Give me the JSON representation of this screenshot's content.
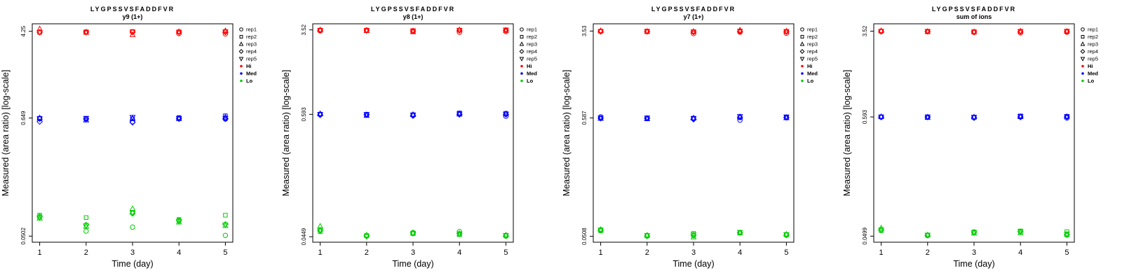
{
  "page": {
    "background": "#FFFFFF"
  },
  "legend": {
    "rep_items": [
      {
        "label": "rep1",
        "symbol": "circle"
      },
      {
        "label": "rep2",
        "symbol": "square"
      },
      {
        "label": "rep3",
        "symbol": "triangle-up"
      },
      {
        "label": "rep4",
        "symbol": "diamond"
      },
      {
        "label": "rep5",
        "symbol": "triangle-down"
      }
    ],
    "level_items": [
      {
        "label": "Hi",
        "color": "#FF0000"
      },
      {
        "label": "Med",
        "color": "#0000FF"
      },
      {
        "label": "Lo",
        "color": "#00CD00"
      }
    ]
  },
  "chart_data": [
    {
      "type": "scatter",
      "title": "LYGPSSVSFADDFVR",
      "subtitle": "y9 (1+)",
      "xlabel": "Time (day)",
      "ylabel": "Measured (area ratio) [log-scale]",
      "x_ticks": [
        1,
        2,
        3,
        4,
        5
      ],
      "log_scale": true,
      "ylim": [
        0.044,
        5.0
      ],
      "y_ticks": [
        {
          "value": 4.25,
          "label": "4.25"
        },
        {
          "value": 0.649,
          "label": "0.649"
        },
        {
          "value": 0.0502,
          "label": "0.0502"
        }
      ],
      "series": [
        {
          "name": "Hi",
          "color": "#FF0000",
          "days": [
            [
              4.18,
              4.15,
              4.48,
              4.17,
              4.16
            ],
            [
              4.17,
              4.2,
              4.15,
              4.18,
              4.16
            ],
            [
              4.2,
              4.22,
              3.95,
              4.18,
              4.19
            ],
            [
              4.05,
              4.2,
              4.22,
              4.18,
              4.17
            ],
            [
              4.02,
              4.22,
              4.3,
              4.18,
              4.2
            ]
          ]
        },
        {
          "name": "Med",
          "color": "#0000FF",
          "days": [
            [
              0.638,
              0.645,
              0.65,
              0.6,
              0.64
            ],
            [
              0.635,
              0.64,
              0.62,
              0.638,
              0.645
            ],
            [
              0.6,
              0.638,
              0.645,
              0.59,
              0.66
            ],
            [
              0.648,
              0.655,
              0.64,
              0.638,
              0.642
            ],
            [
              0.635,
              0.68,
              0.66,
              0.64,
              0.645
            ]
          ]
        },
        {
          "name": "Lo",
          "color": "#00CD00",
          "days": [
            [
              0.076,
              0.079,
              0.074,
              0.077,
              0.075
            ],
            [
              0.056,
              0.075,
              0.062,
              0.064,
              0.063
            ],
            [
              0.061,
              0.084,
              0.091,
              0.082,
              0.083
            ],
            [
              0.07,
              0.072,
              0.068,
              0.071,
              0.069
            ],
            [
              0.051,
              0.079,
              0.063,
              0.065,
              0.064
            ]
          ]
        }
      ]
    },
    {
      "type": "scatter",
      "title": "LYGPSSVSFADDFVR",
      "subtitle": "y8 (1+)",
      "xlabel": "Time (day)",
      "ylabel": "Measured (area ratio) [log-scale]",
      "x_ticks": [
        1,
        2,
        3,
        4,
        5
      ],
      "log_scale": true,
      "ylim": [
        0.04,
        4.0
      ],
      "y_ticks": [
        {
          "value": 3.52,
          "label": "3.52"
        },
        {
          "value": 0.593,
          "label": "0.593"
        },
        {
          "value": 0.0449,
          "label": "0.0449"
        }
      ],
      "series": [
        {
          "name": "Hi",
          "color": "#FF0000",
          "days": [
            [
              3.45,
              3.5,
              3.52,
              3.48,
              3.49
            ],
            [
              3.48,
              3.5,
              3.46,
              3.49,
              3.47
            ],
            [
              3.42,
              3.46,
              3.38,
              3.44,
              3.45
            ],
            [
              3.35,
              3.5,
              3.52,
              3.48,
              3.49
            ],
            [
              3.4,
              3.52,
              3.48,
              3.49,
              3.51
            ]
          ]
        },
        {
          "name": "Med",
          "color": "#0000FF",
          "days": [
            [
              0.59,
              0.595,
              0.6,
              0.585,
              0.592
            ],
            [
              0.588,
              0.59,
              0.578,
              0.589,
              0.593
            ],
            [
              0.58,
              0.588,
              0.59,
              0.575,
              0.585
            ],
            [
              0.6,
              0.61,
              0.595,
              0.59,
              0.598
            ],
            [
              0.57,
              0.605,
              0.6,
              0.592,
              0.595
            ]
          ]
        },
        {
          "name": "Lo",
          "color": "#00CD00",
          "days": [
            [
              0.052,
              0.05,
              0.056,
              0.051,
              0.0515
            ],
            [
              0.0455,
              0.046,
              0.0465,
              0.0458,
              0.0452
            ],
            [
              0.049,
              0.048,
              0.0485,
              0.0488,
              0.0482
            ],
            [
              0.05,
              0.047,
              0.0475,
              0.048,
              0.0478
            ],
            [
              0.0455,
              0.046,
              0.0465,
              0.0458,
              0.0462
            ]
          ]
        }
      ]
    },
    {
      "type": "scatter",
      "title": "LYGPSSVSFADDFVR",
      "subtitle": "y7 (1+)",
      "xlabel": "Time (day)",
      "ylabel": "Measured (area ratio) [log-scale]",
      "x_ticks": [
        1,
        2,
        3,
        4,
        5
      ],
      "log_scale": true,
      "ylim": [
        0.045,
        4.1
      ],
      "y_ticks": [
        {
          "value": 3.53,
          "label": "3.53"
        },
        {
          "value": 0.587,
          "label": "0.587"
        },
        {
          "value": 0.0508,
          "label": "0.0508"
        }
      ],
      "series": [
        {
          "name": "Hi",
          "color": "#FF0000",
          "days": [
            [
              3.5,
              3.52,
              3.55,
              3.51,
              3.5
            ],
            [
              3.5,
              3.51,
              3.49,
              3.5,
              3.52
            ],
            [
              3.35,
              3.48,
              3.5,
              3.46,
              3.47
            ],
            [
              3.45,
              3.52,
              3.6,
              3.5,
              3.51
            ],
            [
              3.38,
              3.5,
              3.52,
              3.49,
              3.5
            ]
          ]
        },
        {
          "name": "Med",
          "color": "#0000FF",
          "days": [
            [
              0.6,
              0.585,
              0.58,
              0.582,
              0.586
            ],
            [
              0.58,
              0.585,
              0.575,
              0.583,
              0.587
            ],
            [
              0.578,
              0.583,
              0.585,
              0.57,
              0.58
            ],
            [
              0.56,
              0.59,
              0.6,
              0.595,
              0.605
            ],
            [
              0.59,
              0.595,
              0.588,
              0.592,
              0.6
            ]
          ]
        },
        {
          "name": "Lo",
          "color": "#00CD00",
          "days": [
            [
              0.058,
              0.057,
              0.0585,
              0.0575,
              0.058
            ],
            [
              0.051,
              0.0515,
              0.052,
              0.0512,
              0.0518
            ],
            [
              0.0515,
              0.054,
              0.05,
              0.0522,
              0.0525
            ],
            [
              0.0548,
              0.055,
              0.0545,
              0.0547,
              0.0552
            ],
            [
              0.052,
              0.0525,
              0.053,
              0.0522,
              0.0528
            ]
          ]
        }
      ]
    },
    {
      "type": "scatter",
      "title": "LYGPSSVSFADDFVR",
      "subtitle": "sum of ions",
      "xlabel": "Time (day)",
      "ylabel": "Measured (area ratio) [log-scale]",
      "x_ticks": [
        1,
        2,
        3,
        4,
        5
      ],
      "log_scale": true,
      "ylim": [
        0.044,
        4.1
      ],
      "y_ticks": [
        {
          "value": 3.52,
          "label": "3.52"
        },
        {
          "value": 0.593,
          "label": "0.593"
        },
        {
          "value": 0.0499,
          "label": "0.0499"
        }
      ],
      "series": [
        {
          "name": "Hi",
          "color": "#FF0000",
          "days": [
            [
              3.5,
              3.52,
              3.55,
              3.51,
              3.5
            ],
            [
              3.49,
              3.5,
              3.48,
              3.5,
              3.51
            ],
            [
              3.44,
              3.48,
              3.46,
              3.47,
              3.45
            ],
            [
              3.4,
              3.5,
              3.52,
              3.49,
              3.5
            ],
            [
              3.45,
              3.52,
              3.5,
              3.49,
              3.51
            ]
          ]
        },
        {
          "name": "Med",
          "color": "#0000FF",
          "days": [
            [
              0.592,
              0.594,
              0.596,
              0.59,
              0.593
            ],
            [
              0.59,
              0.592,
              0.585,
              0.591,
              0.594
            ],
            [
              0.585,
              0.59,
              0.592,
              0.583,
              0.588
            ],
            [
              0.6,
              0.605,
              0.595,
              0.59,
              0.598
            ],
            [
              0.58,
              0.6,
              0.598,
              0.593,
              0.596
            ]
          ]
        },
        {
          "name": "Lo",
          "color": "#00CD00",
          "days": [
            [
              0.057,
              0.056,
              0.059,
              0.0565,
              0.057
            ],
            [
              0.0505,
              0.051,
              0.0512,
              0.0508,
              0.051
            ],
            [
              0.054,
              0.0545,
              0.053,
              0.0542,
              0.0538
            ],
            [
              0.055,
              0.0555,
              0.0535,
              0.0548,
              0.0552
            ],
            [
              0.051,
              0.0548,
              0.052,
              0.0515,
              0.0522
            ]
          ]
        }
      ]
    }
  ]
}
